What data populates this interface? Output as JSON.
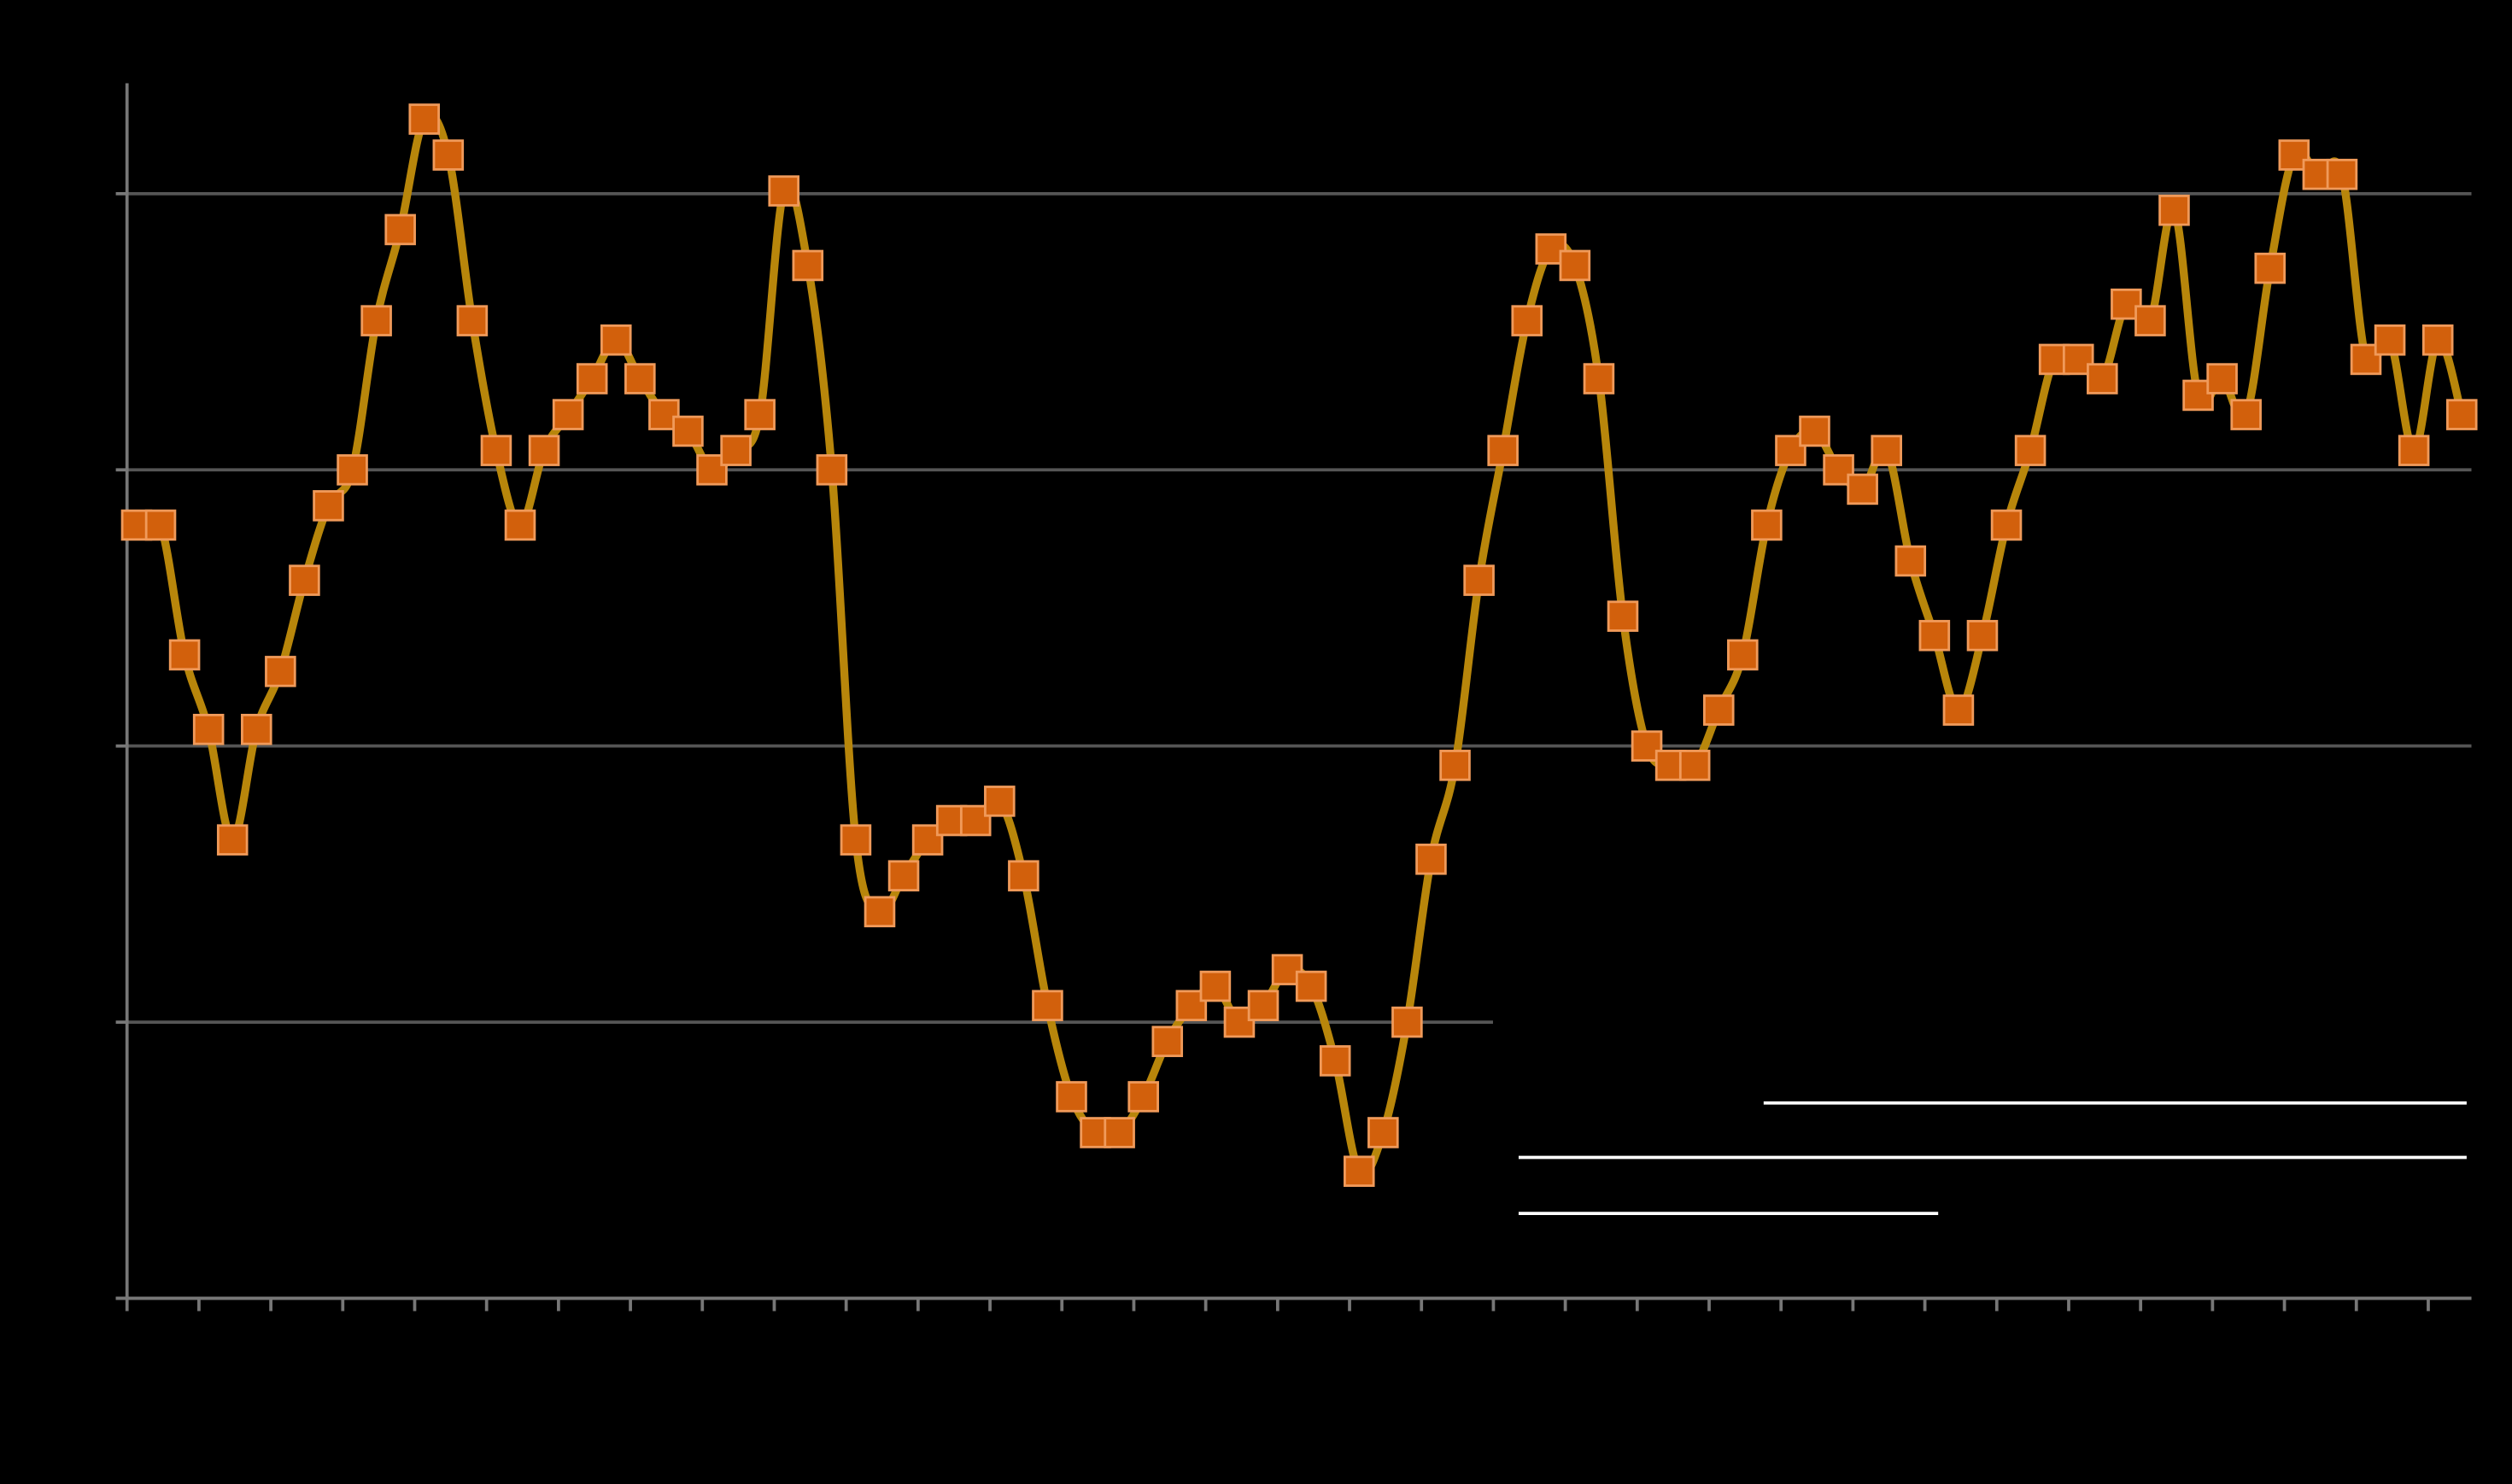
{
  "chart_data": {
    "type": "line",
    "categories": [
      null,
      null,
      null,
      null,
      null,
      null,
      null,
      null,
      null,
      null,
      null,
      null,
      null,
      null,
      null,
      null,
      null,
      null,
      null,
      null,
      null,
      null,
      null,
      null,
      null,
      null,
      null,
      null,
      null,
      null,
      null,
      null,
      null,
      null,
      null,
      null,
      null,
      null,
      null,
      null,
      null,
      null,
      null,
      null,
      null,
      null,
      null,
      null,
      null,
      null,
      null,
      null,
      null,
      null,
      null,
      null,
      null,
      null,
      null,
      null,
      null,
      null,
      null,
      null,
      null,
      null,
      null,
      null,
      null,
      null,
      null,
      null,
      null,
      null,
      null,
      null,
      null,
      null,
      null,
      null,
      null,
      null,
      null,
      null,
      null,
      null,
      null,
      null,
      null,
      null,
      null,
      null,
      null,
      null,
      null,
      null,
      null,
      null
    ],
    "values": [
      2.8,
      2.8,
      2.33,
      2.06,
      1.66,
      2.06,
      2.27,
      2.6,
      2.87,
      3.0,
      3.54,
      3.87,
      4.27,
      4.14,
      3.54,
      3.07,
      2.8,
      3.07,
      3.2,
      3.33,
      3.47,
      3.33,
      3.2,
      3.14,
      3.0,
      3.07,
      3.2,
      4.01,
      3.74,
      3.0,
      1.66,
      1.4,
      1.53,
      1.66,
      1.73,
      1.73,
      1.8,
      1.53,
      1.06,
      0.73,
      0.6,
      0.6,
      0.73,
      0.93,
      1.06,
      1.13,
      1.0,
      1.06,
      1.19,
      1.13,
      0.86,
      0.46,
      0.6,
      1.0,
      1.59,
      1.93,
      2.6,
      3.07,
      3.54,
      3.8,
      3.74,
      3.33,
      2.47,
      2.0,
      1.93,
      1.93,
      2.13,
      2.33,
      2.8,
      3.07,
      3.14,
      3.0,
      2.93,
      3.07,
      2.67,
      2.4,
      2.13,
      2.4,
      2.8,
      3.07,
      3.4,
      3.4,
      3.33,
      3.6,
      3.54,
      3.94,
      3.27,
      3.33,
      3.2,
      3.73,
      4.14,
      4.07,
      4.07,
      3.4,
      3.47,
      3.07,
      3.47,
      3.2
    ],
    "color": "#b8860b",
    "marker_color": "#d2600c",
    "ylim": [
      0,
      4.4
    ],
    "yticks": [
      0,
      1,
      2,
      3,
      4
    ],
    "grid": true
  }
}
